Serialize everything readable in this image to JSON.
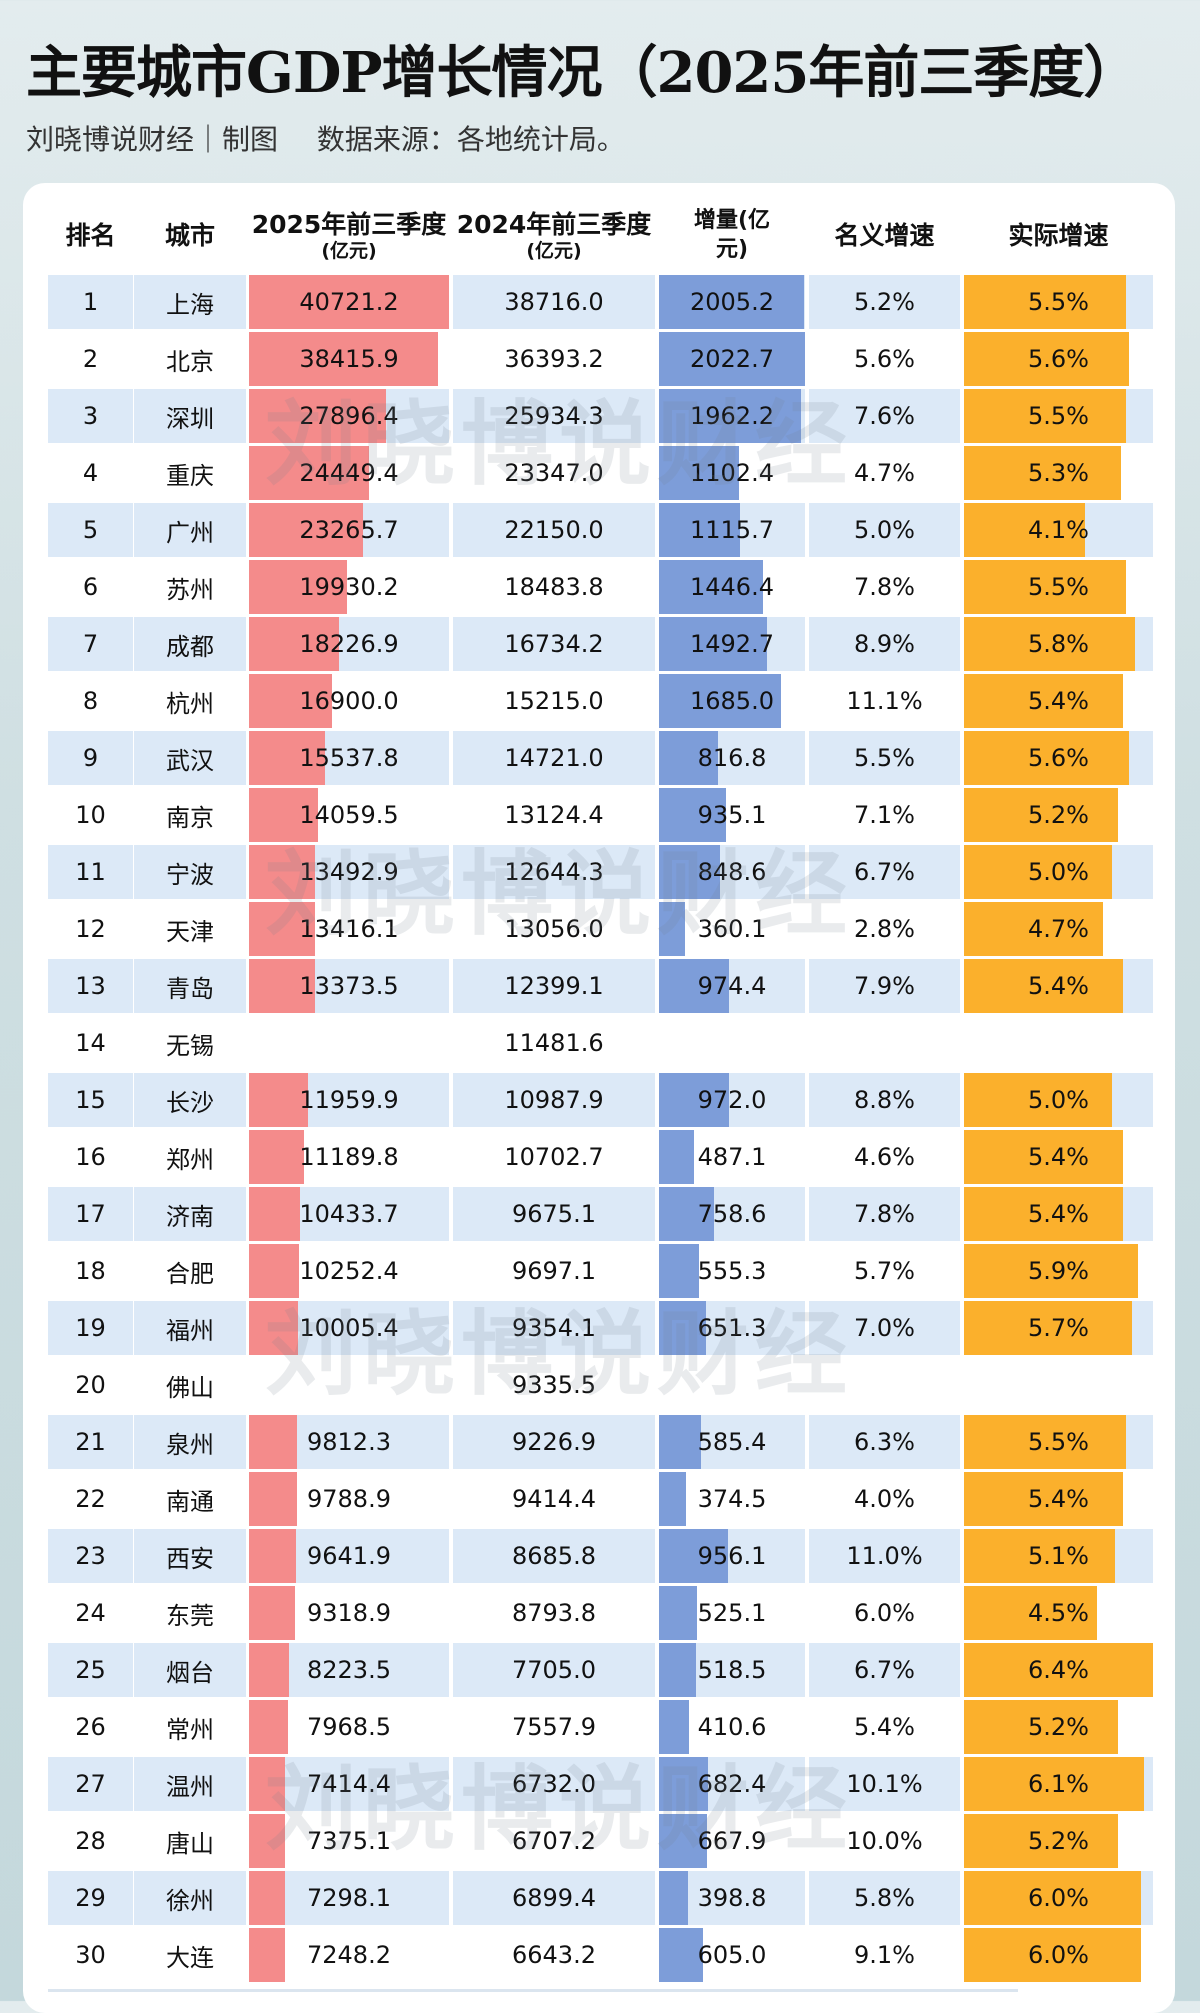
{
  "title": "主要城市GDP增长情况（2025年前三季度）",
  "subtitle": {
    "author": "刘晓博说财经｜制图",
    "source": "数据来源：各地统计局。"
  },
  "watermark": "刘晓博说财经",
  "colors": {
    "gdp2025_bar": "#f48b8b",
    "increase_bar": "#7d9dd9",
    "real_growth_bar": "#fbb02c",
    "row_stripe": "#dce9f7"
  },
  "headers": {
    "rank": "排名",
    "city": "城市",
    "gdp2025": "2025年前三季度",
    "gdp2025_unit": "(亿元)",
    "gdp2024": "2024年前三季度",
    "gdp2024_unit": "(亿元)",
    "increase": "增量",
    "increase_unit": "(亿元)",
    "nominal": "名义增速",
    "real": "实际增速"
  },
  "chart_data": {
    "type": "table",
    "title": "主要城市GDP增长情况（2025年前三季度）",
    "columns": [
      "排名",
      "城市",
      "2025年前三季度(亿元)",
      "2024年前三季度(亿元)",
      "增量(亿元)",
      "名义增速",
      "实际增速"
    ],
    "rows": [
      [
        "1",
        "上海",
        "40721.2",
        "38716.0",
        "2005.2",
        "5.2%",
        "5.5%"
      ],
      [
        "2",
        "北京",
        "38415.9",
        "36393.2",
        "2022.7",
        "5.6%",
        "5.6%"
      ],
      [
        "3",
        "深圳",
        "27896.4",
        "25934.3",
        "1962.2",
        "7.6%",
        "5.5%"
      ],
      [
        "4",
        "重庆",
        "24449.4",
        "23347.0",
        "1102.4",
        "4.7%",
        "5.3%"
      ],
      [
        "5",
        "广州",
        "23265.7",
        "22150.0",
        "1115.7",
        "5.0%",
        "4.1%"
      ],
      [
        "6",
        "苏州",
        "19930.2",
        "18483.8",
        "1446.4",
        "7.8%",
        "5.5%"
      ],
      [
        "7",
        "成都",
        "18226.9",
        "16734.2",
        "1492.7",
        "8.9%",
        "5.8%"
      ],
      [
        "8",
        "杭州",
        "16900.0",
        "15215.0",
        "1685.0",
        "11.1%",
        "5.4%"
      ],
      [
        "9",
        "武汉",
        "15537.8",
        "14721.0",
        "816.8",
        "5.5%",
        "5.6%"
      ],
      [
        "10",
        "南京",
        "14059.5",
        "13124.4",
        "935.1",
        "7.1%",
        "5.2%"
      ],
      [
        "11",
        "宁波",
        "13492.9",
        "12644.3",
        "848.6",
        "6.7%",
        "5.0%"
      ],
      [
        "12",
        "天津",
        "13416.1",
        "13056.0",
        "360.1",
        "2.8%",
        "4.7%"
      ],
      [
        "13",
        "青岛",
        "13373.5",
        "12399.1",
        "974.4",
        "7.9%",
        "5.4%"
      ],
      [
        "14",
        "无锡",
        "",
        "11481.6",
        "",
        "",
        ""
      ],
      [
        "15",
        "长沙",
        "11959.9",
        "10987.9",
        "972.0",
        "8.8%",
        "5.0%"
      ],
      [
        "16",
        "郑州",
        "11189.8",
        "10702.7",
        "487.1",
        "4.6%",
        "5.4%"
      ],
      [
        "17",
        "济南",
        "10433.7",
        "9675.1",
        "758.6",
        "7.8%",
        "5.4%"
      ],
      [
        "18",
        "合肥",
        "10252.4",
        "9697.1",
        "555.3",
        "5.7%",
        "5.9%"
      ],
      [
        "19",
        "福州",
        "10005.4",
        "9354.1",
        "651.3",
        "7.0%",
        "5.7%"
      ],
      [
        "20",
        "佛山",
        "",
        "9335.5",
        "",
        "",
        ""
      ],
      [
        "21",
        "泉州",
        "9812.3",
        "9226.9",
        "585.4",
        "6.3%",
        "5.5%"
      ],
      [
        "22",
        "南通",
        "9788.9",
        "9414.4",
        "374.5",
        "4.0%",
        "5.4%"
      ],
      [
        "23",
        "西安",
        "9641.9",
        "8685.8",
        "956.1",
        "11.0%",
        "5.1%"
      ],
      [
        "24",
        "东莞",
        "9318.9",
        "8793.8",
        "525.1",
        "6.0%",
        "4.5%"
      ],
      [
        "25",
        "烟台",
        "8223.5",
        "7705.0",
        "518.5",
        "6.7%",
        "6.4%"
      ],
      [
        "26",
        "常州",
        "7968.5",
        "7557.9",
        "410.6",
        "5.4%",
        "5.2%"
      ],
      [
        "27",
        "温州",
        "7414.4",
        "6732.0",
        "682.4",
        "10.1%",
        "6.1%"
      ],
      [
        "28",
        "唐山",
        "7375.1",
        "6707.2",
        "667.9",
        "10.0%",
        "5.2%"
      ],
      [
        "29",
        "徐州",
        "7298.1",
        "6899.4",
        "398.8",
        "5.8%",
        "6.0%"
      ],
      [
        "30",
        "大连",
        "7248.2",
        "6643.2",
        "605.0",
        "9.1%",
        "6.0%"
      ]
    ]
  }
}
